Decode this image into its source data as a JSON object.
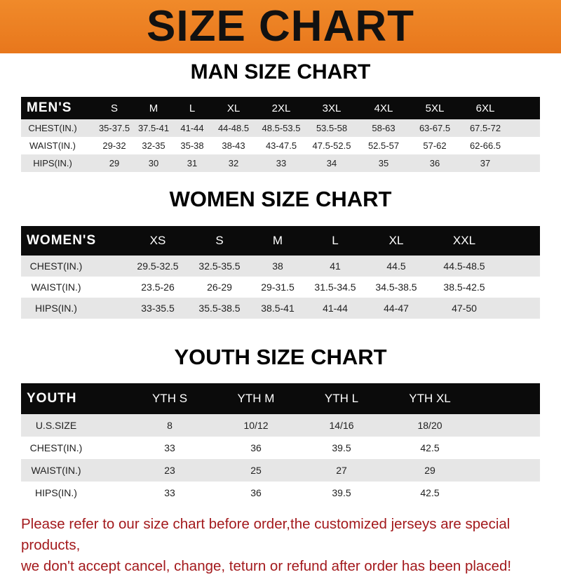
{
  "banner": {
    "title": "SIZE CHART",
    "color": "#ec7f22"
  },
  "men": {
    "title": "MAN SIZE CHART",
    "header": [
      "MEN'S",
      "S",
      "M",
      "L",
      "XL",
      "2XL",
      "3XL",
      "4XL",
      "5XL",
      "6XL"
    ],
    "rows": [
      [
        "CHEST(IN.)",
        "35-37.5",
        "37.5-41",
        "41-44",
        "44-48.5",
        "48.5-53.5",
        "53.5-58",
        "58-63",
        "63-67.5",
        "67.5-72"
      ],
      [
        "WAIST(IN.)",
        "29-32",
        "32-35",
        "35-38",
        "38-43",
        "43-47.5",
        "47.5-52.5",
        "52.5-57",
        "57-62",
        "62-66.5"
      ],
      [
        "HIPS(IN.)",
        "29",
        "30",
        "31",
        "32",
        "33",
        "34",
        "35",
        "36",
        "37"
      ]
    ]
  },
  "women": {
    "title": "WOMEN SIZE CHART",
    "header": [
      "WOMEN'S",
      "XS",
      "S",
      "M",
      "L",
      "XL",
      "XXL"
    ],
    "rows": [
      [
        "CHEST(IN.)",
        "29.5-32.5",
        "32.5-35.5",
        "38",
        "41",
        "44.5",
        "44.5-48.5"
      ],
      [
        "WAIST(IN.)",
        "23.5-26",
        "26-29",
        "29-31.5",
        "31.5-34.5",
        "34.5-38.5",
        "38.5-42.5"
      ],
      [
        "HIPS(IN.)",
        "33-35.5",
        "35.5-38.5",
        "38.5-41",
        "41-44",
        "44-47",
        "47-50"
      ]
    ]
  },
  "youth": {
    "title": "YOUTH SIZE CHART",
    "header": [
      "YOUTH",
      "YTH S",
      "YTH M",
      "YTH L",
      "YTH XL"
    ],
    "rows": [
      [
        "U.S.SIZE",
        "8",
        "10/12",
        "14/16",
        "18/20"
      ],
      [
        "CHEST(IN.)",
        "33",
        "36",
        "39.5",
        "42.5"
      ],
      [
        "WAIST(IN.)",
        "23",
        "25",
        "27",
        "29"
      ],
      [
        "HIPS(IN.)",
        "33",
        "36",
        "39.5",
        "42.5"
      ]
    ]
  },
  "note": {
    "line1": "Please refer to our size chart before order,the customized jerseys are special products,",
    "line2": "we don't accept cancel, change, teturn or refund after order has been placed!",
    "color": "#a3191c"
  }
}
